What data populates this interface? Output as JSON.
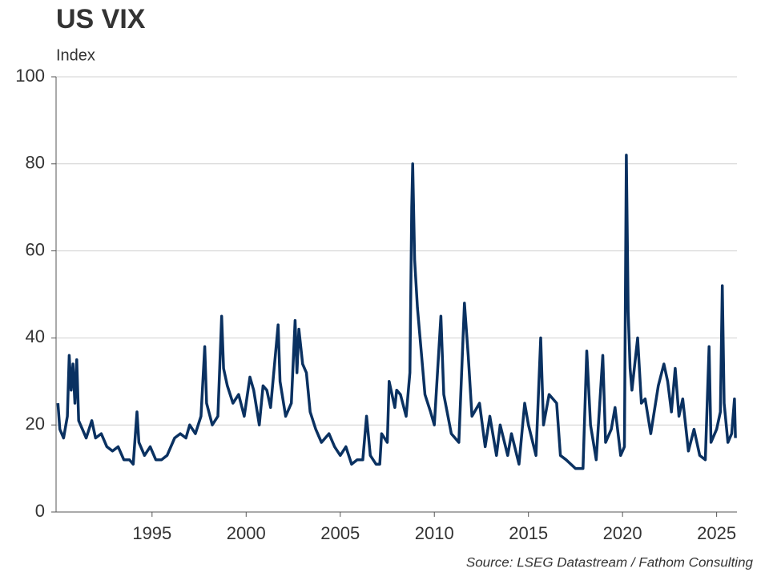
{
  "chart_data": {
    "type": "line",
    "title": "US VIX",
    "subtitle": "Index",
    "source": "Source: LSEG Datastream / Fathom Consulting",
    "color": "#0a3161",
    "grid": true,
    "x": [
      1990.0,
      1990.1,
      1990.3,
      1990.5,
      1990.6,
      1990.7,
      1990.8,
      1990.9,
      1991.0,
      1991.1,
      1991.3,
      1991.5,
      1991.8,
      1992.0,
      1992.3,
      1992.6,
      1992.9,
      1993.2,
      1993.5,
      1993.8,
      1994.0,
      1994.2,
      1994.3,
      1994.6,
      1994.9,
      1995.2,
      1995.5,
      1995.8,
      1996.2,
      1996.5,
      1996.8,
      1997.0,
      1997.3,
      1997.6,
      1997.8,
      1997.9,
      1998.2,
      1998.5,
      1998.7,
      1998.8,
      1999.0,
      1999.3,
      1999.6,
      1999.9,
      2000.2,
      2000.4,
      2000.7,
      2000.9,
      2001.1,
      2001.3,
      2001.7,
      2001.8,
      2002.1,
      2002.4,
      2002.6,
      2002.7,
      2002.8,
      2003.0,
      2003.2,
      2003.4,
      2003.7,
      2004.0,
      2004.4,
      2004.7,
      2005.0,
      2005.3,
      2005.6,
      2005.9,
      2006.2,
      2006.4,
      2006.6,
      2006.9,
      2007.1,
      2007.2,
      2007.5,
      2007.6,
      2007.9,
      2008.0,
      2008.2,
      2008.5,
      2008.7,
      2008.8,
      2008.85,
      2008.95,
      2009.1,
      2009.3,
      2009.5,
      2009.8,
      2010.0,
      2010.35,
      2010.5,
      2010.9,
      2011.3,
      2011.6,
      2011.8,
      2012.0,
      2012.4,
      2012.7,
      2012.95,
      2013.3,
      2013.5,
      2013.9,
      2014.1,
      2014.5,
      2014.8,
      2015.0,
      2015.4,
      2015.65,
      2015.8,
      2016.1,
      2016.5,
      2016.7,
      2017.0,
      2017.5,
      2017.9,
      2018.1,
      2018.3,
      2018.6,
      2018.95,
      2019.1,
      2019.4,
      2019.6,
      2019.9,
      2020.1,
      2020.2,
      2020.3,
      2020.4,
      2020.5,
      2020.8,
      2021.0,
      2021.2,
      2021.5,
      2021.9,
      2022.2,
      2022.4,
      2022.6,
      2022.8,
      2023.0,
      2023.2,
      2023.5,
      2023.8,
      2024.1,
      2024.4,
      2024.6,
      2024.7,
      2025.0,
      2025.2,
      2025.3,
      2025.4,
      2025.6,
      2025.8,
      2025.95,
      2026.0
    ],
    "values": [
      25,
      19,
      17,
      22,
      36,
      28,
      34,
      25,
      35,
      21,
      19,
      17,
      21,
      17,
      18,
      15,
      14,
      15,
      12,
      12,
      11,
      23,
      16,
      13,
      15,
      12,
      12,
      13,
      17,
      18,
      17,
      20,
      18,
      22,
      38,
      25,
      20,
      22,
      45,
      33,
      29,
      25,
      27,
      22,
      31,
      28,
      20,
      29,
      28,
      24,
      43,
      30,
      22,
      25,
      44,
      32,
      42,
      34,
      32,
      23,
      19,
      16,
      18,
      15,
      13,
      15,
      11,
      12,
      12,
      22,
      13,
      11,
      11,
      18,
      16,
      30,
      24,
      28,
      27,
      22,
      32,
      70,
      80,
      58,
      47,
      37,
      27,
      23,
      20,
      45,
      27,
      18,
      16,
      48,
      36,
      22,
      25,
      15,
      22,
      13,
      20,
      13,
      18,
      11,
      25,
      20,
      13,
      40,
      20,
      27,
      25,
      13,
      12,
      10,
      10,
      37,
      20,
      12,
      36,
      16,
      19,
      24,
      13,
      15,
      82,
      46,
      33,
      28,
      40,
      25,
      26,
      18,
      29,
      34,
      30,
      23,
      33,
      22,
      26,
      14,
      19,
      13,
      12,
      38,
      16,
      19,
      23,
      52,
      25,
      16,
      18,
      26,
      17
    ],
    "xlim": [
      1989.9,
      2026.08
    ],
    "xticks": [
      1995,
      2000,
      2005,
      2010,
      2015,
      2020,
      2025
    ],
    "ylim": [
      0,
      100
    ],
    "yticks": [
      0,
      20,
      40,
      60,
      80,
      100
    ]
  }
}
